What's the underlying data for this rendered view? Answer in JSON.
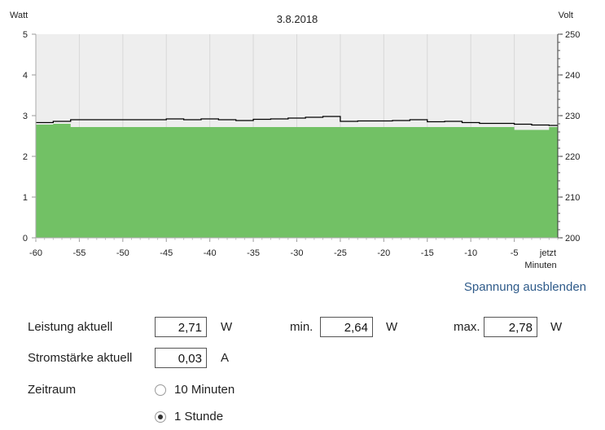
{
  "chart_data": {
    "type": "area",
    "title": "3.8.2018",
    "ylabel_left": "Watt",
    "ylabel_right": "Volt",
    "xlabel": "jetzt Minuten",
    "xlim": [
      -60,
      0
    ],
    "ylim_left": [
      0,
      5
    ],
    "ylim_right": [
      200,
      250
    ],
    "xticks": [
      -60,
      -55,
      -50,
      -45,
      -40,
      -35,
      -30,
      -25,
      -20,
      -15,
      -10,
      -5
    ],
    "xtick_labels": [
      "-60",
      "-55",
      "-50",
      "-45",
      "-40",
      "-35",
      "-30",
      "-25",
      "-20",
      "-15",
      "-10",
      "-5"
    ],
    "yticks_left": [
      "0",
      "1",
      "2",
      "3",
      "4",
      "5"
    ],
    "yticks_right": [
      "200",
      "210",
      "220",
      "230",
      "240",
      "250"
    ],
    "series": [
      {
        "name": "Leistung",
        "unit": "W",
        "color": "#72c165",
        "x": [
          -60,
          -58,
          -56,
          -5,
          -1,
          0
        ],
        "values": [
          2.78,
          2.8,
          2.72,
          2.65,
          2.72,
          2.72
        ]
      },
      {
        "name": "Spannung",
        "unit": "V",
        "color": "#000000",
        "x": [
          -60,
          -58,
          -56,
          -45,
          -43,
          -41,
          -39,
          -37,
          -35,
          -33,
          -31,
          -29,
          -27,
          -25,
          -23,
          -19,
          -17,
          -15,
          -13,
          -11,
          -9,
          -7,
          -5,
          -3,
          -1,
          0
        ],
        "values": [
          228.3,
          228.6,
          229.0,
          229.2,
          229.0,
          229.2,
          229.0,
          228.8,
          229.1,
          229.2,
          229.4,
          229.6,
          229.8,
          228.6,
          228.7,
          228.8,
          229.0,
          228.5,
          228.6,
          228.3,
          228.1,
          228.1,
          227.9,
          227.7,
          227.6,
          227.6
        ]
      }
    ],
    "plot_background": "#eeeeee"
  },
  "toggle_link": "Spannung ausblenden",
  "power": {
    "label": "Leistung aktuell",
    "value": "2,71",
    "unit": "W",
    "min_label": "min.",
    "min_value": "2,64",
    "min_unit": "W",
    "max_label": "max.",
    "max_value": "2,78",
    "max_unit": "W"
  },
  "current": {
    "label": "Stromstärke aktuell",
    "value": "0,03",
    "unit": "A"
  },
  "timerange": {
    "label": "Zeitraum",
    "options": [
      {
        "label": "10 Minuten",
        "checked": false
      },
      {
        "label": "1 Stunde",
        "checked": true
      }
    ]
  }
}
